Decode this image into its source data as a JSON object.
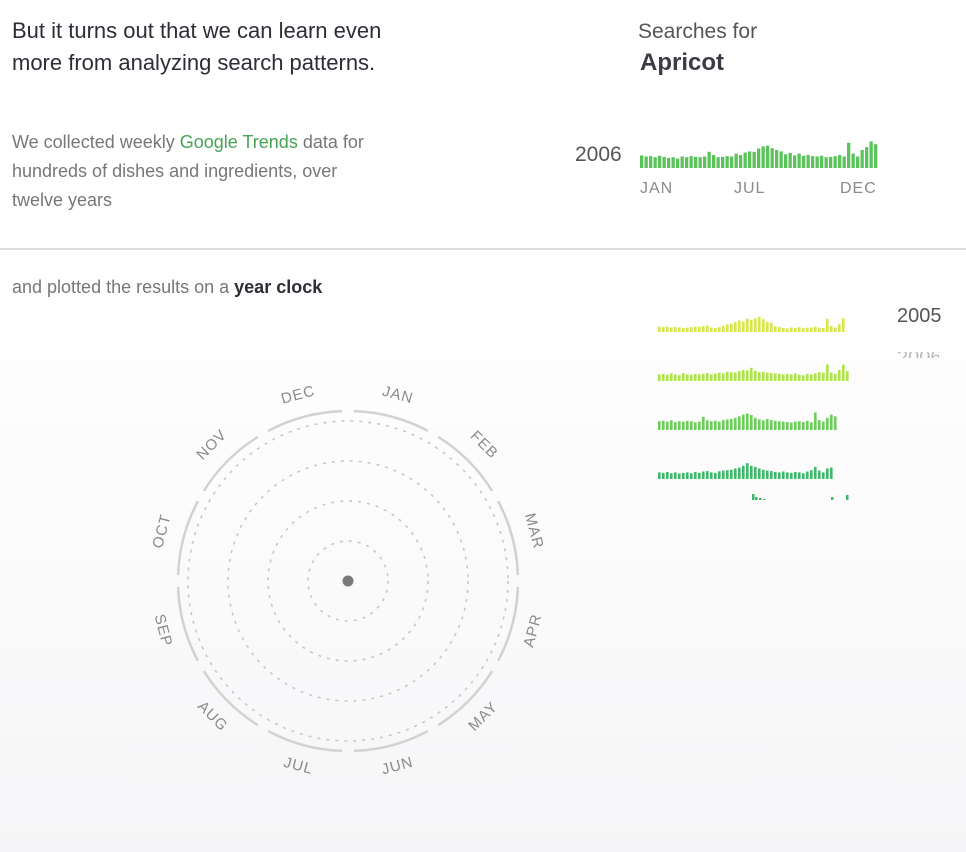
{
  "intro": {
    "headline": "But it turns out that we can learn even more from analyzing search patterns.",
    "collected_prefix": "We collected weekly ",
    "collected_link": "Google Trends",
    "collected_suffix": " data for hundreds of dishes and ingredients, over twelve years"
  },
  "search_panel": {
    "label": "Searches for",
    "term": "Apricot",
    "year": "2006",
    "months": [
      "JAN",
      "JUL",
      "DEC"
    ],
    "bar_color": "#5cc35c",
    "weekly_interest": [
      35,
      32,
      33,
      30,
      34,
      31,
      28,
      30,
      26,
      32,
      30,
      33,
      31,
      30,
      32,
      45,
      36,
      30,
      31,
      33,
      32,
      40,
      36,
      43,
      46,
      45,
      54,
      60,
      62,
      55,
      50,
      46,
      38,
      42,
      35,
      40,
      34,
      36,
      33,
      32,
      34,
      30,
      31,
      33,
      36,
      32,
      70,
      40,
      32,
      50,
      58,
      74,
      66
    ]
  },
  "clock_section": {
    "prefix": "and plotted the results on a ",
    "emphasis": "year clock",
    "months": [
      "JAN",
      "FEB",
      "MAR",
      "APR",
      "MAY",
      "JUN",
      "JUL",
      "AUG",
      "SEP",
      "OCT",
      "NOV",
      "DEC"
    ]
  },
  "stacked_years": {
    "first_label": "2005",
    "second_label": "2006",
    "row_colors": [
      "#d7e74a",
      "#aee34a",
      "#6ccf5a",
      "#3fb86a"
    ],
    "rows": [
      [
        25,
        22,
        24,
        20,
        23,
        21,
        18,
        20,
        22,
        25,
        24,
        27,
        30,
        20,
        18,
        22,
        28,
        35,
        38,
        45,
        52,
        48,
        60,
        55,
        62,
        70,
        58,
        46,
        42,
        26,
        22,
        18,
        16,
        20,
        18,
        22,
        17,
        19,
        21,
        24,
        20,
        18,
        60,
        28,
        20,
        35,
        62
      ],
      [
        30,
        32,
        28,
        34,
        30,
        26,
        36,
        30,
        28,
        32,
        30,
        33,
        36,
        30,
        34,
        38,
        35,
        42,
        40,
        38,
        45,
        50,
        48,
        60,
        46,
        40,
        42,
        38,
        36,
        34,
        33,
        30,
        32,
        30,
        34,
        28,
        26,
        32,
        30,
        35,
        40,
        38,
        75,
        38,
        32,
        50,
        74,
        45
      ],
      [
        40,
        42,
        38,
        44,
        36,
        40,
        38,
        42,
        40,
        35,
        38,
        60,
        44,
        40,
        42,
        38,
        45,
        48,
        50,
        55,
        62,
        70,
        75,
        68,
        55,
        48,
        44,
        50,
        46,
        42,
        40,
        38,
        36,
        34,
        38,
        40,
        36,
        42,
        35,
        80,
        45,
        38,
        55,
        70,
        62
      ],
      [
        30,
        28,
        32,
        26,
        30,
        25,
        28,
        30,
        26,
        32,
        28,
        34,
        36,
        30,
        28,
        35,
        38,
        40,
        42,
        48,
        52,
        60,
        72,
        60,
        55,
        48,
        42,
        38,
        36,
        32,
        30,
        34,
        30,
        28,
        32,
        30,
        26,
        34,
        40,
        55,
        38,
        30,
        48,
        52
      ]
    ]
  }
}
